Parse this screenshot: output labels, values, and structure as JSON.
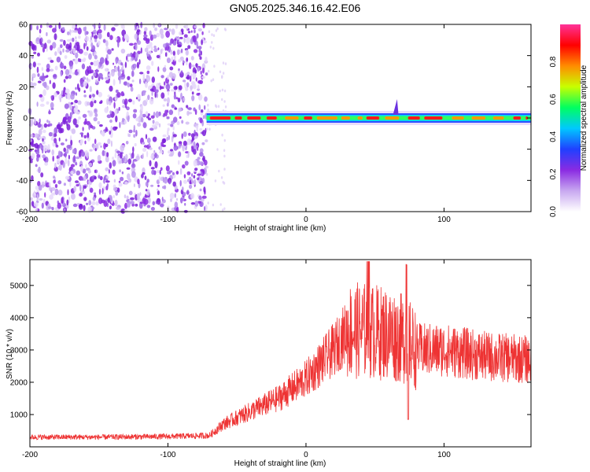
{
  "title": "GN05.2025.346.16.42.E06",
  "colors": {
    "snr_line": "#ee3333",
    "colormap": [
      "#ffffff",
      "#c8a8f0",
      "#8a2be2",
      "#2040ff",
      "#00c8ff",
      "#00ff60",
      "#c8ff00",
      "#ff8c00",
      "#ff0000",
      "#ff3399"
    ]
  },
  "chart_data": [
    {
      "type": "heatmap",
      "xlabel": "Height of straight line (km)",
      "ylabel": "Frequency (Hz)",
      "xlim": [
        -200,
        163
      ],
      "ylim": [
        -60,
        60
      ],
      "xticks": [
        "-200",
        "-100",
        "0",
        "100"
      ],
      "yticks": [
        "-60",
        "-40",
        "-20",
        "0",
        "20",
        "40",
        "60"
      ],
      "noise_region_x": [
        -200,
        -72
      ],
      "signal_region_x": [
        -72,
        163
      ],
      "signal_center_freq": 0,
      "colorbar": {
        "label": "Normalized spectral amplitude",
        "range": [
          0.0,
          1.0
        ],
        "ticks": [
          "0.0",
          "0.2",
          "0.4",
          "0.6",
          "0.8"
        ]
      }
    },
    {
      "type": "line",
      "xlabel": "Height of straight line (km)",
      "ylabel": "SNR (10 * v/v)",
      "xlim": [
        -200,
        163
      ],
      "ylim": [
        0,
        5800
      ],
      "xticks": [
        "-200",
        "-100",
        "0",
        "100"
      ],
      "yticks": [
        "1000",
        "2000",
        "3000",
        "4000",
        "5000"
      ],
      "series": [
        {
          "x": [
            -200,
            -150,
            -100,
            -70,
            -60,
            -40,
            -20,
            0,
            20,
            30,
            45,
            60,
            73,
            80,
            100,
            130,
            163
          ],
          "y": [
            300,
            300,
            320,
            350,
            700,
            1100,
            1500,
            2100,
            3000,
            3600,
            3600,
            3500,
            3300,
            3000,
            3000,
            2800,
            2700
          ]
        }
      ]
    }
  ]
}
